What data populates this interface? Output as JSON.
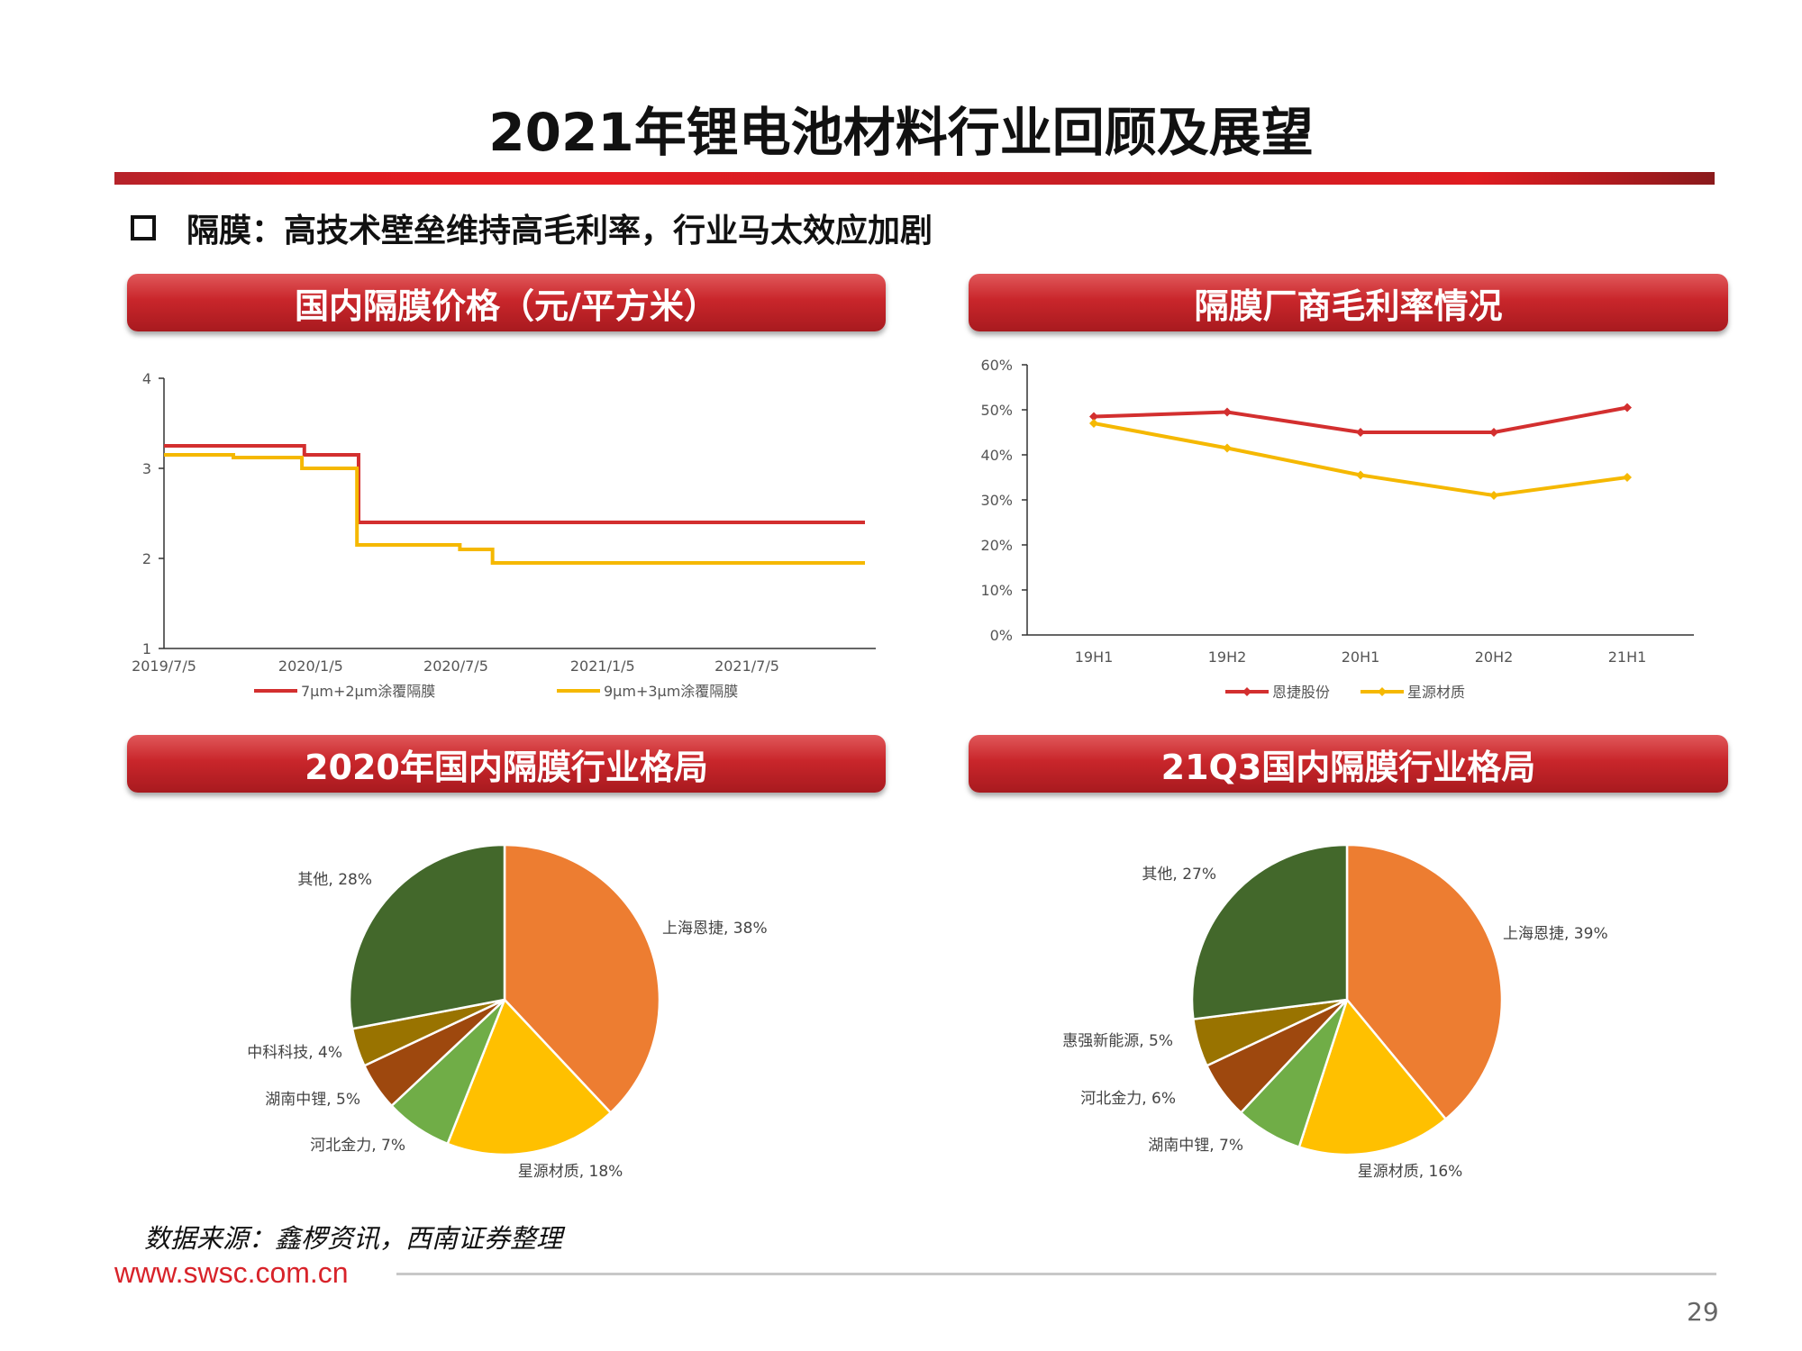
{
  "page": {
    "title": "2021年锂电池材料行业回顾及展望",
    "subtitle": "隔膜：高技术壁垒维持高毛利率，行业马太效应加剧",
    "source": "数据来源：鑫椤资讯，西南证券整理",
    "website": "www.swsc.com.cn",
    "page_number": "29"
  },
  "panels": {
    "price_title": "国内隔膜价格（元/平方米）",
    "margin_title": "隔膜厂商毛利率情况",
    "share2020_title": "2020年国内隔膜行业格局",
    "share21q3_title": "21Q3国内隔膜行业格局"
  },
  "colors": {
    "red_series": "#d32f2f",
    "yellow_series": "#f5b800",
    "pie_orange": "#ed7d31",
    "pie_yellow": "#ffc000",
    "pie_green_light": "#70ad47",
    "pie_rust": "#9e480e",
    "pie_olive": "#997300",
    "pie_green_dark": "#43682b"
  },
  "chart_data": [
    {
      "type": "line",
      "x_ticks": [
        "2019/7/5",
        "2020/1/5",
        "2020/7/5",
        "2021/1/5",
        "2021/7/5"
      ],
      "ylim": [
        1,
        4
      ],
      "y_ticks": [
        "1",
        "2",
        "3",
        "4"
      ],
      "series": [
        {
          "name": "7μm+2μm涂覆隔膜",
          "points": [
            [
              "2019/7/5",
              3.25
            ],
            [
              "2019/12/20",
              3.25
            ],
            [
              "2019/12/28",
              3.15
            ],
            [
              "2020/2/25",
              3.15
            ],
            [
              "2020/3/5",
              2.4
            ],
            [
              "2021/11/30",
              2.4
            ]
          ]
        },
        {
          "name": "9μm+3μm涂覆隔膜",
          "points": [
            [
              "2019/7/5",
              3.15
            ],
            [
              "2019/9/15",
              3.15
            ],
            [
              "2019/9/30",
              3.12
            ],
            [
              "2019/12/15",
              3.12
            ],
            [
              "2019/12/25",
              3.0
            ],
            [
              "2020/2/25",
              3.0
            ],
            [
              "2020/3/3",
              2.15
            ],
            [
              "2020/7/5",
              2.15
            ],
            [
              "2020/7/10",
              2.1
            ],
            [
              "2020/8/15",
              2.1
            ],
            [
              "2020/8/20",
              1.95
            ],
            [
              "2021/11/30",
              1.95
            ]
          ]
        }
      ]
    },
    {
      "type": "line",
      "categories": [
        "19H1",
        "19H2",
        "20H1",
        "20H2",
        "21H1"
      ],
      "ylim": [
        0,
        60
      ],
      "y_ticks": [
        "0%",
        "10%",
        "20%",
        "30%",
        "40%",
        "50%",
        "60%"
      ],
      "series": [
        {
          "name": "恩捷股份",
          "values": [
            48.5,
            49.5,
            45,
            45,
            50.5
          ]
        },
        {
          "name": "星源材质",
          "values": [
            47,
            41.5,
            35.5,
            31,
            35
          ]
        }
      ]
    },
    {
      "type": "pie",
      "slices": [
        {
          "label": "上海恩捷, 38%",
          "value": 38,
          "color": "#ed7d31"
        },
        {
          "label": "星源材质, 18%",
          "value": 18,
          "color": "#ffc000"
        },
        {
          "label": "河北金力, 7%",
          "value": 7,
          "color": "#70ad47"
        },
        {
          "label": "湖南中锂, 5%",
          "value": 5,
          "color": "#9e480e"
        },
        {
          "label": "中科科技, 4%",
          "value": 4,
          "color": "#997300"
        },
        {
          "label": "其他, 28%",
          "value": 28,
          "color": "#43682b"
        }
      ]
    },
    {
      "type": "pie",
      "slices": [
        {
          "label": "上海恩捷, 39%",
          "value": 39,
          "color": "#ed7d31"
        },
        {
          "label": "星源材质, 16%",
          "value": 16,
          "color": "#ffc000"
        },
        {
          "label": "湖南中锂, 7%",
          "value": 7,
          "color": "#70ad47"
        },
        {
          "label": "河北金力, 6%",
          "value": 6,
          "color": "#9e480e"
        },
        {
          "label": "惠强新能源, 5%",
          "value": 5,
          "color": "#997300"
        },
        {
          "label": "其他, 27%",
          "value": 27,
          "color": "#43682b"
        }
      ]
    }
  ]
}
